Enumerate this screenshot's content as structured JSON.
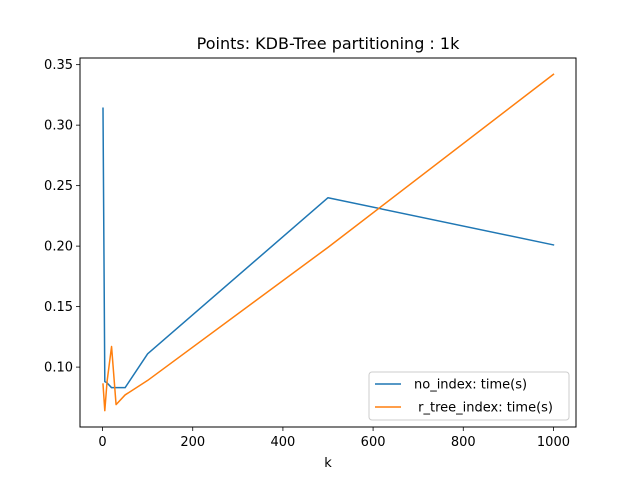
{
  "chart_data": {
    "type": "line",
    "title": "Points: KDB-Tree partitioning : 1k",
    "xlabel": "k",
    "ylabel": "",
    "xlim": [
      -50,
      1050
    ],
    "ylim": [
      0.0505,
      0.3555
    ],
    "xticks": [
      0,
      200,
      400,
      600,
      800,
      1000
    ],
    "xtick_labels": [
      "0",
      "200",
      "400",
      "600",
      "800",
      "1000"
    ],
    "yticks": [
      0.1,
      0.15,
      0.2,
      0.25,
      0.3,
      0.35
    ],
    "ytick_labels": [
      "0.10",
      "0.15",
      "0.20",
      "0.25",
      "0.30",
      "0.35"
    ],
    "grid": false,
    "legend_position": "lower-right",
    "series": [
      {
        "name": "no_index: time(s)",
        "color": "#1f77b4",
        "x": [
          1,
          5,
          10,
          20,
          30,
          50,
          100,
          500,
          1000
        ],
        "y": [
          0.314,
          0.088,
          0.087,
          0.083,
          0.083,
          0.083,
          0.111,
          0.24,
          0.201
        ]
      },
      {
        "name": " r_tree_index: time(s)",
        "color": "#ff7f0e",
        "x": [
          1,
          5,
          10,
          20,
          30,
          50,
          100,
          500,
          1000
        ],
        "y": [
          0.086,
          0.064,
          0.088,
          0.117,
          0.069,
          0.077,
          0.089,
          0.199,
          0.342
        ]
      }
    ]
  }
}
